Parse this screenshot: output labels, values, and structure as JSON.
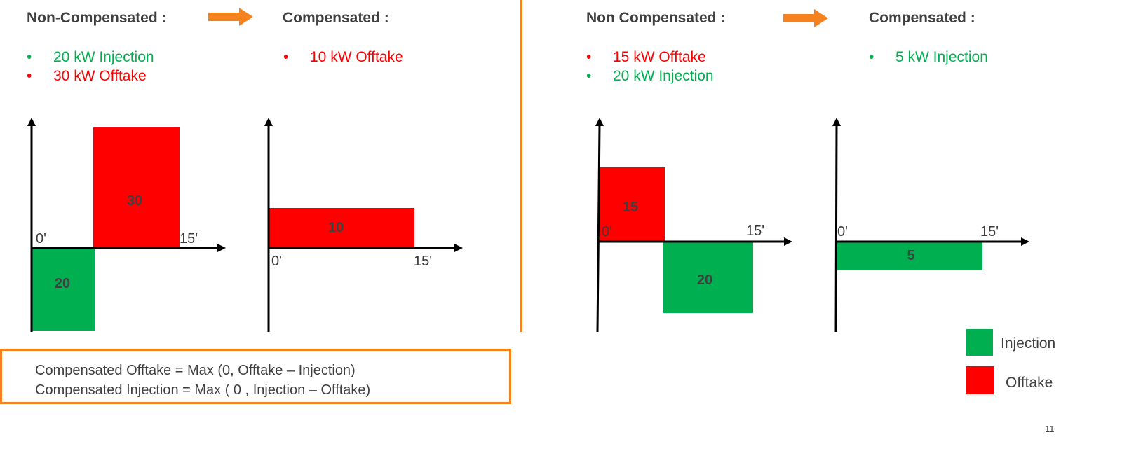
{
  "colors": {
    "injection": "#00b050",
    "offtake": "#ff0000",
    "accent": "#f5821f",
    "text": "#404040"
  },
  "left": {
    "heading_non": "Non-Compensated :",
    "heading_comp": "Compensated :",
    "non_bullets": [
      {
        "dot": "•",
        "text": "20 kW Injection",
        "kind": "injection"
      },
      {
        "dot": "•",
        "text": "30 kW Offtake",
        "kind": "offtake"
      }
    ],
    "comp_bullets": [
      {
        "dot": "•",
        "text": "10 kW Offtake",
        "kind": "offtake"
      }
    ],
    "chart_non": {
      "tick_start": "0'",
      "tick_end": "15'",
      "bar_injection": "20",
      "bar_offtake": "30"
    },
    "chart_comp": {
      "tick_start": "0'",
      "tick_end": "15'",
      "bar_offtake": "10"
    }
  },
  "right": {
    "heading_non": "Non Compensated :",
    "heading_comp": "Compensated :",
    "non_bullets": [
      {
        "dot": "•",
        "text": "15 kW Offtake",
        "kind": "offtake"
      },
      {
        "dot": "•",
        "text": "20 kW Injection",
        "kind": "injection"
      }
    ],
    "comp_bullets": [
      {
        "dot": "•",
        "text": "5 kW Injection",
        "kind": "injection"
      }
    ],
    "chart_non": {
      "tick_start": "0'",
      "tick_end": "15'",
      "bar_offtake": "15",
      "bar_injection": "20"
    },
    "chart_comp": {
      "tick_start": "0'",
      "tick_end": "15'",
      "bar_injection": "5"
    }
  },
  "formula": {
    "line1": "Compensated Offtake = Max (0, Offtake – Injection)",
    "line2": "Compensated Injection = Max ( 0 , Injection – Offtake)"
  },
  "legend": {
    "injection": "Injection",
    "offtake": "Offtake"
  },
  "page_number": "11"
}
